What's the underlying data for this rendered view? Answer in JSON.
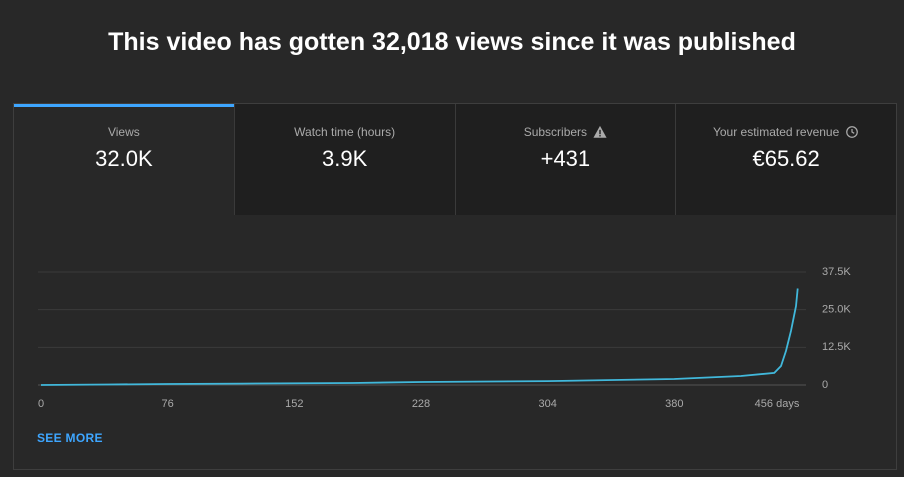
{
  "header": {
    "title": "This video has gotten 32,018 views since it was published"
  },
  "tabs": [
    {
      "label": "Views",
      "value": "32.0K"
    },
    {
      "label": "Watch time (hours)",
      "value": "3.9K"
    },
    {
      "label": "Subscribers",
      "value": "+431"
    },
    {
      "label": "Your estimated revenue",
      "value": "€65.62"
    }
  ],
  "chart_data": {
    "type": "line",
    "color": "#41b8db",
    "x": [
      0,
      40,
      76,
      120,
      187,
      228,
      304,
      380,
      420,
      440,
      444,
      447,
      450,
      453,
      454
    ],
    "values": [
      0,
      150,
      330,
      450,
      660,
      1000,
      1300,
      2000,
      3000,
      4000,
      6300,
      11300,
      18000,
      26200,
      32018
    ],
    "xlim": [
      0,
      456
    ],
    "ylim": [
      0,
      37500
    ],
    "xticks": [
      0,
      76,
      152,
      228,
      304,
      380,
      {
        "value": 456,
        "label": "456 days"
      }
    ],
    "yticks": [
      0,
      {
        "value": 12500,
        "label": "12.5K"
      },
      {
        "value": 25000,
        "label": "25.0K"
      },
      {
        "value": 37500,
        "label": "37.5K"
      }
    ],
    "grid": true
  },
  "link": "SEE MORE"
}
